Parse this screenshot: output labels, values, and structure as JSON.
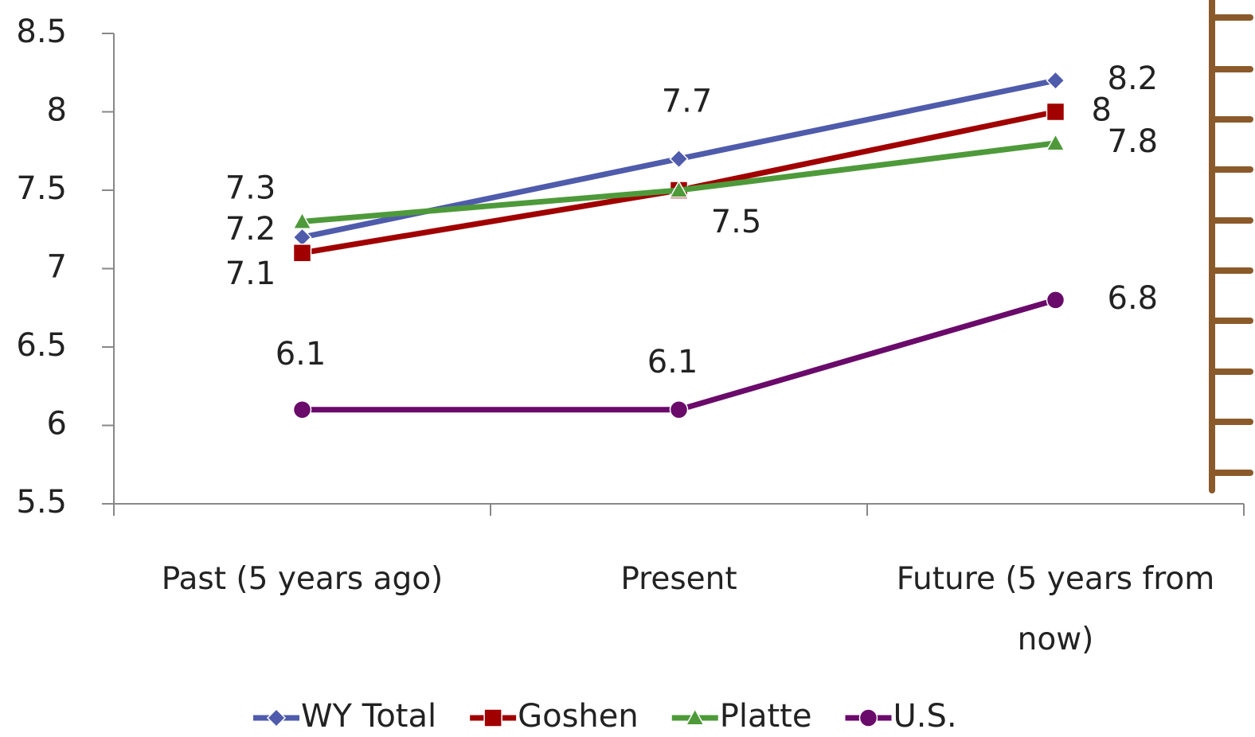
{
  "chart_data": {
    "type": "line",
    "categories": [
      "Past (5 years ago)",
      "Present",
      "Future (5 years from now)"
    ],
    "series": [
      {
        "name": "WY Total",
        "color": "#4f5bab",
        "marker": "diamond",
        "values": [
          7.2,
          7.7,
          8.2
        ]
      },
      {
        "name": "Goshen",
        "color": "#a00000",
        "marker": "square",
        "values": [
          7.1,
          7.5,
          8
        ]
      },
      {
        "name": "Platte",
        "color": "#4e9a3a",
        "marker": "triangle",
        "values": [
          7.3,
          7.5,
          7.8
        ]
      },
      {
        "name": "U.S.",
        "color": "#6a0a6a",
        "marker": "circle",
        "values": [
          6.1,
          6.1,
          6.8
        ]
      }
    ],
    "ylim": [
      5.5,
      8.5
    ],
    "yticks": [
      5.5,
      6,
      6.5,
      7,
      7.5,
      8,
      8.5
    ],
    "legend": "bottom"
  }
}
